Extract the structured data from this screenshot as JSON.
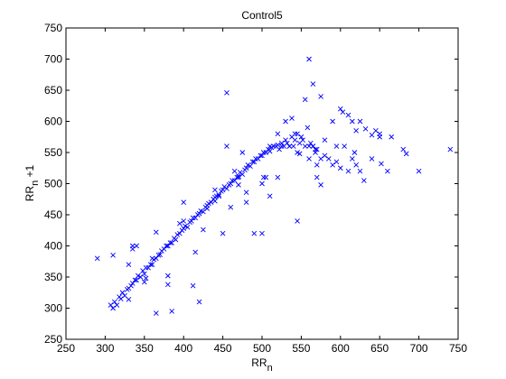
{
  "chart_data": {
    "type": "scatter",
    "title": "Control5",
    "xlabel": "RR",
    "xlabel_sub": "n",
    "ylabel": "RR",
    "ylabel_sub": "n",
    "ylabel_suffix": "+1",
    "xlim": [
      250,
      750
    ],
    "ylim": [
      250,
      750
    ],
    "xticks": [
      250,
      300,
      350,
      400,
      450,
      500,
      550,
      600,
      650,
      700,
      750
    ],
    "yticks": [
      250,
      300,
      350,
      400,
      450,
      500,
      550,
      600,
      650,
      700,
      750
    ],
    "marker": "x",
    "marker_color": "#0000ff",
    "grid": false,
    "series": [
      {
        "x": [
          307,
          310,
          312,
          315,
          318,
          320,
          322,
          325,
          328,
          330,
          333,
          335,
          338,
          340,
          342,
          345,
          348,
          350,
          352,
          355,
          358,
          360,
          362,
          365,
          368,
          370,
          372,
          375,
          378,
          380,
          383,
          385,
          388,
          390,
          392,
          395,
          398,
          400,
          402,
          405,
          408,
          410,
          412,
          415,
          418,
          420,
          422,
          425,
          428,
          430,
          432,
          435,
          438,
          440,
          442,
          445,
          448,
          450,
          452,
          455,
          458,
          460,
          462,
          465,
          468,
          470,
          472,
          475,
          478,
          480,
          482,
          485,
          488,
          490,
          492,
          495,
          498,
          500,
          502,
          505,
          508,
          510,
          512,
          515,
          518,
          520,
          522,
          525,
          528,
          530,
          532,
          535,
          538,
          540,
          542,
          545,
          548,
          550,
          552,
          555,
          558,
          560,
          562,
          565,
          568,
          570,
          575,
          580,
          585,
          590,
          595,
          600,
          605,
          610,
          615,
          620,
          625,
          630,
          640,
          645,
          650,
          660,
          665,
          680,
          684,
          700,
          740,
          290,
          310,
          335,
          340,
          352,
          360,
          365,
          380,
          385,
          400,
          412,
          415,
          420,
          425,
          430,
          440,
          445,
          450,
          455,
          465,
          470,
          475,
          480,
          490,
          500,
          505,
          510,
          520,
          525,
          530,
          545,
          560,
          568,
          570,
          575,
          580,
          595,
          600,
          603,
          610,
          625,
          502,
          545,
          565,
          570,
          575,
          335,
          330,
          330,
          350,
          365,
          380,
          395,
          400,
          440,
          460,
          470,
          480,
          500,
          510,
          520,
          535,
          538,
          542,
          548,
          555,
          560,
          565,
          590,
          615,
          618,
          620,
          632,
          640,
          650,
          652,
          455
        ],
        "y": [
          305,
          300,
          310,
          305,
          318,
          315,
          325,
          320,
          330,
          332,
          336,
          340,
          345,
          345,
          352,
          350,
          360,
          355,
          365,
          365,
          370,
          370,
          378,
          380,
          385,
          386,
          392,
          395,
          400,
          400,
          405,
          405,
          412,
          410,
          418,
          420,
          425,
          428,
          432,
          430,
          438,
          440,
          445,
          445,
          450,
          452,
          456,
          455,
          462,
          465,
          468,
          470,
          475,
          478,
          480,
          482,
          488,
          490,
          495,
          492,
          498,
          500,
          505,
          505,
          510,
          512,
          518,
          515,
          522,
          525,
          530,
          528,
          535,
          535,
          540,
          540,
          545,
          545,
          550,
          550,
          555,
          552,
          558,
          560,
          560,
          562,
          555,
          565,
          560,
          570,
          565,
          560,
          575,
          560,
          570,
          580,
          565,
          575,
          570,
          560,
          590,
          560,
          565,
          560,
          555,
          555,
          540,
          545,
          540,
          530,
          535,
          525,
          560,
          520,
          540,
          530,
          520,
          505,
          540,
          585,
          580,
          520,
          575,
          555,
          548,
          520,
          555,
          380,
          385,
          400,
          400,
          348,
          380,
          292,
          352,
          295,
          470,
          336,
          390,
          310,
          426,
          460,
          490,
          480,
          420,
          560,
          520,
          510,
          550,
          470,
          420,
          420,
          510,
          480,
          510,
          560,
          600,
          440,
          540,
          550,
          530,
          640,
          570,
          560,
          620,
          615,
          610,
          600,
          510,
          550,
          560,
          510,
          498,
          395,
          370,
          314,
          342,
          422,
          338,
          436,
          440,
          472,
          462,
          498,
          486,
          500,
          560,
          580,
          560,
          605,
          580,
          548,
          635,
          700,
          660,
          600,
          600,
          550,
          585,
          588,
          578,
          575,
          532,
          646
        ]
      }
    ]
  }
}
